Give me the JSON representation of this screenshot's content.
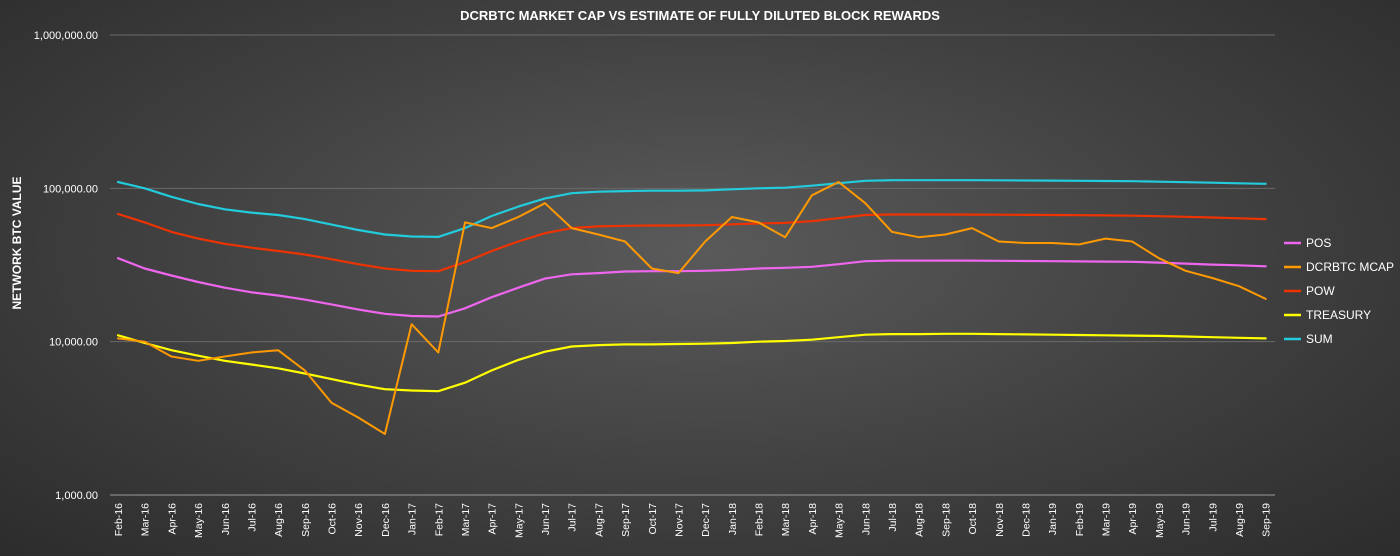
{
  "chart_data": {
    "type": "line",
    "title": "DCRBTC MARKET CAP VS ESTIMATE OF FULLY DILUTED BLOCK REWARDS",
    "ylabel": "NETWORK BTC VALUE",
    "xlabel": "",
    "yscale": "log",
    "ylim": [
      1000,
      1000000
    ],
    "y_ticks": [
      1000,
      10000,
      100000,
      1000000
    ],
    "y_tick_labels": [
      "1,000.00",
      "10,000.00",
      "100,000.00",
      "1,000,000.00"
    ],
    "grid": "horizontal",
    "legend_position": "right",
    "x": [
      "Feb-16",
      "Mar-16",
      "Apr-16",
      "May-16",
      "Jun-16",
      "Jul-16",
      "Aug-16",
      "Sep-16",
      "Oct-16",
      "Nov-16",
      "Dec-16",
      "Jan-17",
      "Feb-17",
      "Mar-17",
      "Apr-17",
      "May-17",
      "Jun-17",
      "Jul-17",
      "Aug-17",
      "Sep-17",
      "Oct-17",
      "Nov-17",
      "Dec-17",
      "Jan-18",
      "Feb-18",
      "Mar-18",
      "Apr-18",
      "May-18",
      "Jun-18",
      "Jul-18",
      "Aug-18",
      "Sep-18",
      "Oct-18",
      "Nov-18",
      "Dec-18",
      "Jan-19",
      "Feb-19",
      "Mar-19",
      "Apr-19",
      "May-19",
      "Jun-19",
      "Jul-19",
      "Aug-19",
      "Sep-19"
    ],
    "series": [
      {
        "name": "POS",
        "color": "#ee66ee",
        "values": [
          35000,
          30000,
          27000,
          24500,
          22500,
          21000,
          20000,
          18800,
          17500,
          16200,
          15200,
          14700,
          14600,
          16500,
          19500,
          22500,
          25800,
          27500,
          28000,
          28700,
          28800,
          28800,
          29000,
          29400,
          30000,
          30300,
          30800,
          32000,
          33500,
          33800,
          33800,
          33800,
          33800,
          33700,
          33600,
          33500,
          33400,
          33300,
          33200,
          32800,
          32300,
          31800,
          31500,
          31000
        ]
      },
      {
        "name": "DCRBTC MCAP",
        "color": "#ff9900",
        "values": [
          10500,
          10000,
          8000,
          7500,
          8000,
          8500,
          8800,
          6500,
          4000,
          3200,
          2500,
          13000,
          8500,
          60000,
          55000,
          65000,
          80000,
          55000,
          50000,
          45000,
          30000,
          28000,
          45000,
          65000,
          60000,
          48000,
          90000,
          110000,
          80000,
          52000,
          48000,
          50000,
          55000,
          45000,
          44000,
          44000,
          43000,
          47000,
          45000,
          35000,
          29000,
          26000,
          23000,
          19000
        ]
      },
      {
        "name": "POW",
        "color": "#ee3300",
        "values": [
          68000,
          60000,
          52000,
          47000,
          43500,
          41000,
          39000,
          37000,
          34500,
          32000,
          30000,
          29000,
          28800,
          33000,
          39000,
          45000,
          51000,
          55000,
          56500,
          57000,
          57200,
          57200,
          57500,
          58300,
          59000,
          59500,
          61000,
          64000,
          67000,
          67500,
          67500,
          67500,
          67400,
          67300,
          67100,
          67000,
          66800,
          66600,
          66300,
          65800,
          65200,
          64500,
          63800,
          63000
        ]
      },
      {
        "name": "TREASURY",
        "color": "#ffff00",
        "values": [
          11000,
          9800,
          8800,
          8100,
          7500,
          7100,
          6700,
          6200,
          5700,
          5250,
          4900,
          4800,
          4750,
          5400,
          6500,
          7600,
          8600,
          9300,
          9500,
          9600,
          9600,
          9650,
          9700,
          9800,
          10000,
          10100,
          10300,
          10700,
          11100,
          11200,
          11200,
          11250,
          11250,
          11200,
          11150,
          11100,
          11050,
          11000,
          10950,
          10900,
          10800,
          10700,
          10600,
          10500
        ]
      },
      {
        "name": "SUM",
        "color": "#22ccdd",
        "values": [
          110000,
          100000,
          88000,
          79000,
          73000,
          69500,
          67000,
          63000,
          58000,
          53500,
          50000,
          48500,
          48200,
          55000,
          66000,
          76000,
          86000,
          93000,
          95000,
          96000,
          96500,
          96500,
          97000,
          98500,
          100000,
          101000,
          104000,
          108000,
          112000,
          113000,
          113000,
          113000,
          113000,
          112800,
          112500,
          112300,
          112000,
          111700,
          111300,
          110500,
          109700,
          108800,
          107900,
          107000
        ]
      }
    ]
  }
}
